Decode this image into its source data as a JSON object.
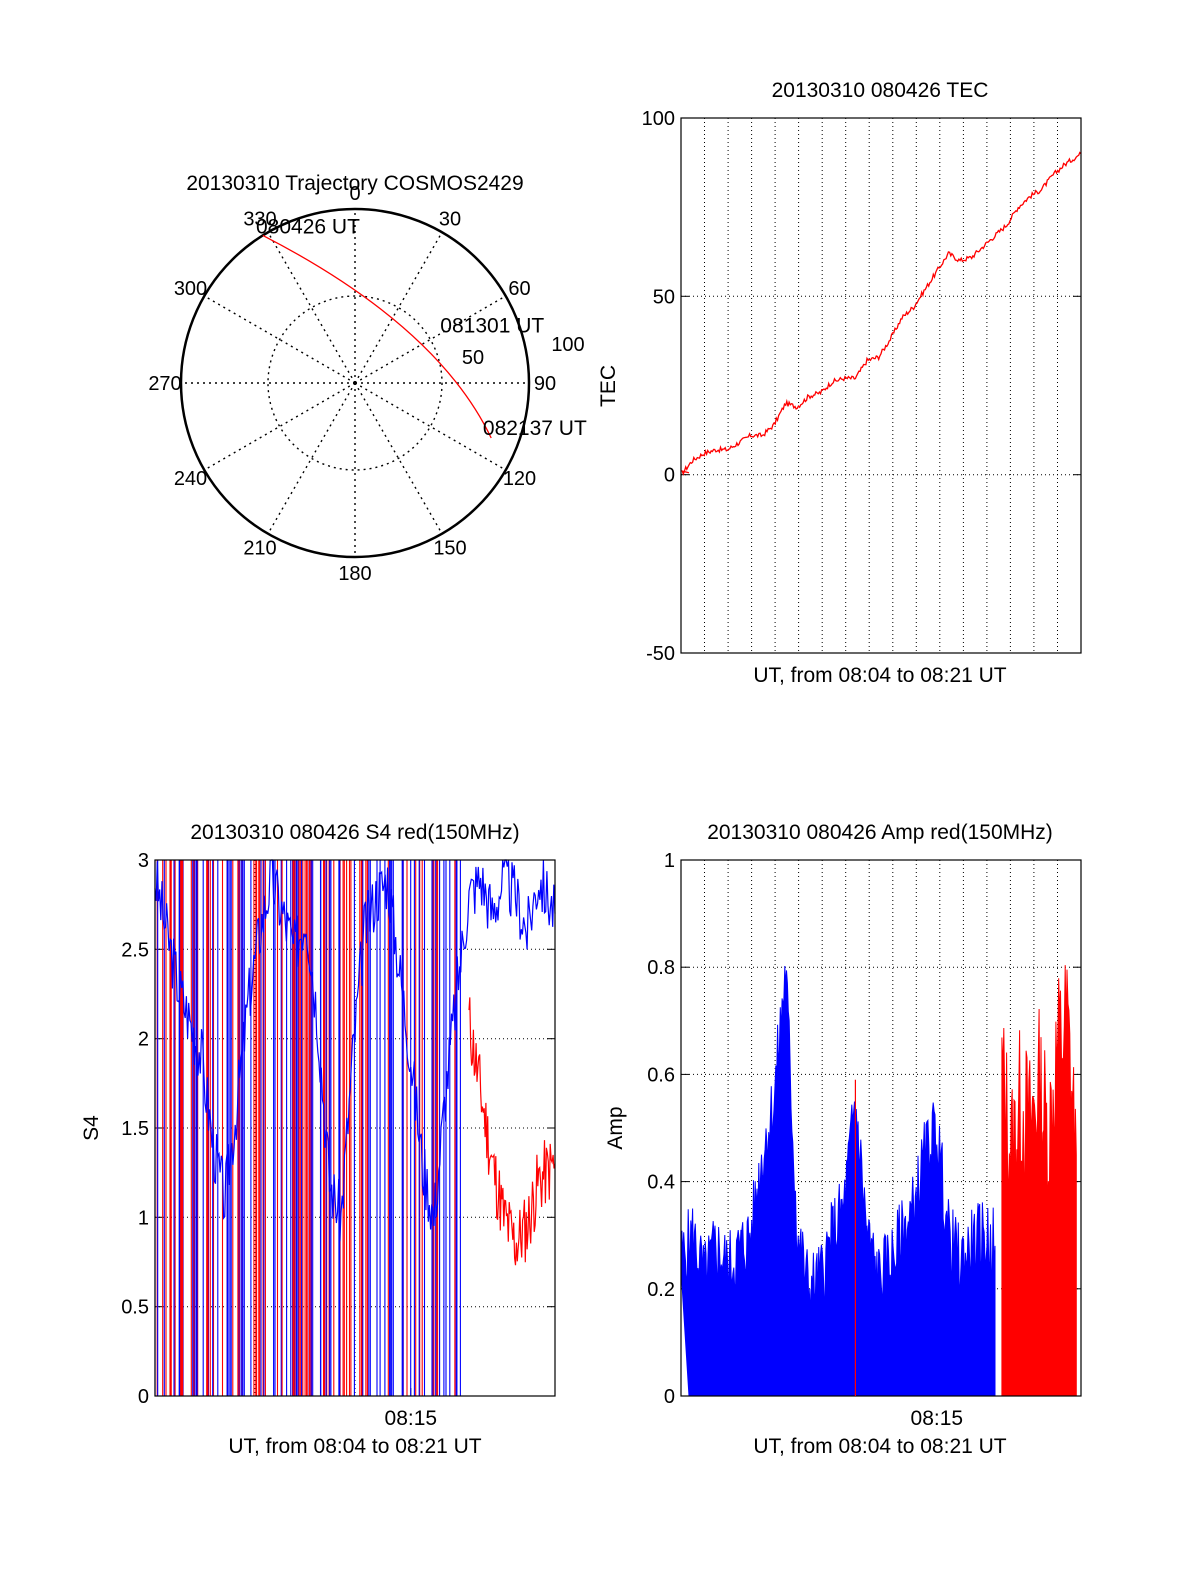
{
  "colors": {
    "red": "#ff0000",
    "blue": "#0000ff",
    "axis": "#000000",
    "grid": "#000000"
  },
  "chart_data": [
    {
      "type": "polar",
      "id": "trajectory",
      "title": "20130310 Trajectory COSMOS2429",
      "azimuth_labels": [
        "0",
        "30",
        "60",
        "90",
        "120",
        "150",
        "180",
        "210",
        "240",
        "270",
        "300",
        "330"
      ],
      "radial_labels": [
        "50",
        "100"
      ],
      "trajectory": {
        "start": {
          "azimuth": 328,
          "elevation": 0
        },
        "end": {
          "azimuth": 112,
          "elevation": 14
        },
        "control": {
          "azimuth": 55,
          "elevation": 38
        }
      },
      "annotations": [
        {
          "text": "080426 UT",
          "azimuth": 330,
          "elevation": 0
        },
        {
          "text": "081301 UT",
          "azimuth": 62,
          "elevation": 33
        },
        {
          "text": "082137 UT",
          "azimuth": 110,
          "elevation": 13
        }
      ]
    },
    {
      "type": "line",
      "id": "tec",
      "title": "20130310 080426 TEC",
      "xlabel": "UT, from 08:04 to 08:21 UT",
      "ylabel": "TEC",
      "ylim": [
        -50,
        100
      ],
      "yticks": [
        "-50",
        "0",
        "50",
        "100"
      ],
      "x_range_minutes": [
        0,
        17.2
      ],
      "series": [
        {
          "name": "TEC",
          "color": "#ff0000",
          "x": [
            0,
            0.5,
            1.0,
            1.5,
            2.0,
            2.5,
            3.0,
            3.5,
            4.0,
            4.5,
            5.0,
            5.5,
            6.0,
            6.5,
            7.0,
            7.5,
            8.0,
            8.5,
            9.0,
            9.5,
            10.0,
            10.5,
            11.0,
            11.5,
            12.0,
            12.5,
            13.0,
            13.5,
            14.0,
            14.5,
            15.0,
            15.5,
            16.0,
            16.5,
            17.2
          ],
          "values": [
            0,
            4,
            6,
            7,
            7,
            9,
            11,
            11,
            14,
            20,
            19,
            22,
            23,
            26,
            27,
            27,
            32,
            33,
            38,
            44,
            47,
            52,
            57,
            62,
            60,
            61,
            64,
            67,
            70,
            75,
            78,
            80,
            84,
            87,
            90
          ]
        }
      ]
    },
    {
      "type": "line",
      "id": "s4",
      "title": "20130310 080426 S4 red(150MHz)",
      "xlabel": "UT, from 08:04 to 08:21 UT",
      "ylabel": "S4",
      "ylim": [
        0,
        3
      ],
      "yticks": [
        "0",
        "0.5",
        "1",
        "1.5",
        "2",
        "2.5",
        "3"
      ],
      "x_range_minutes": [
        0,
        17.2
      ],
      "xtick": {
        "label": "08:15",
        "minute": 11
      },
      "series": [
        {
          "name": "S4 blue",
          "color": "#0000ff",
          "x": [
            0,
            0.5,
            1.0,
            1.5,
            2.0,
            2.5,
            3.0,
            3.5,
            4.0,
            4.5,
            5.0,
            5.5,
            6.0,
            6.5,
            7.0,
            7.5,
            8.0,
            8.5,
            9.0,
            9.5,
            10.0,
            10.5,
            11.0,
            11.5,
            12.0,
            12.5,
            13.0,
            13.5,
            14.0,
            14.5,
            15.0,
            15.5,
            16.0,
            16.5,
            17.2
          ],
          "values": [
            2.9,
            2.6,
            2.3,
            2.1,
            1.9,
            1.4,
            1.1,
            1.6,
            2.2,
            2.6,
            2.9,
            2.7,
            2.5,
            2.7,
            2.1,
            1.2,
            1.0,
            1.9,
            2.6,
            2.8,
            2.9,
            2.4,
            1.9,
            1.3,
            1.0,
            1.7,
            2.3,
            2.8,
            2.9,
            2.7,
            2.9,
            2.8,
            2.6,
            2.9,
            2.7
          ]
        },
        {
          "name": "S4 red",
          "color": "#ff0000",
          "x": [
            13.5,
            14.0,
            14.5,
            15.0,
            15.5,
            16.0,
            16.5,
            17.2
          ],
          "values": [
            2.1,
            1.7,
            1.3,
            1.0,
            0.85,
            0.95,
            1.2,
            1.3
          ]
        }
      ]
    },
    {
      "type": "bar",
      "id": "amp",
      "title": "20130310 080426 Amp red(150MHz)",
      "xlabel": "UT, from 08:04 to 08:21 UT",
      "ylabel": "Amp",
      "ylim": [
        0,
        1
      ],
      "yticks": [
        "0",
        "0.2",
        "0.4",
        "0.6",
        "0.8",
        "1"
      ],
      "x_range_minutes": [
        0,
        17.2
      ],
      "xtick": {
        "label": "08:15",
        "minute": 11
      },
      "series": [
        {
          "name": "Amp blue",
          "color": "#0000ff",
          "x": [
            0,
            0.5,
            1.0,
            1.5,
            2.0,
            2.5,
            3.0,
            3.5,
            4.0,
            4.5,
            5.0,
            5.5,
            6.0,
            6.5,
            7.0,
            7.5,
            8.0,
            8.5,
            9.0,
            9.5,
            10.0,
            10.5,
            11.0,
            11.5,
            12.0,
            12.5,
            13.0,
            13.5
          ],
          "values": [
            0.25,
            0.3,
            0.22,
            0.28,
            0.24,
            0.27,
            0.3,
            0.45,
            0.55,
            0.8,
            0.3,
            0.2,
            0.22,
            0.3,
            0.35,
            0.55,
            0.3,
            0.22,
            0.25,
            0.3,
            0.35,
            0.45,
            0.5,
            0.3,
            0.25,
            0.28,
            0.3,
            0.28
          ]
        },
        {
          "name": "Amp red",
          "color": "#ff0000",
          "x": [
            7.5,
            13.8,
            14.2,
            14.6,
            15.0,
            15.4,
            15.8,
            16.2,
            16.6,
            17.0
          ],
          "values": [
            0.59,
            0.6,
            0.45,
            0.55,
            0.5,
            0.58,
            0.48,
            0.65,
            0.7,
            0.45
          ]
        }
      ]
    }
  ]
}
